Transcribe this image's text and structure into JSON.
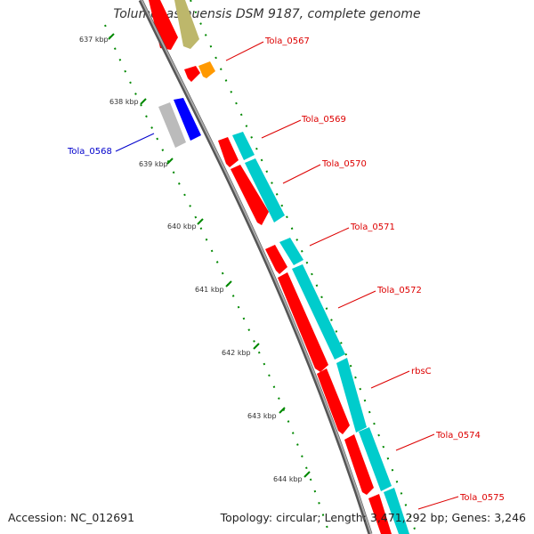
{
  "title": "Tolumonas auensis DSM 9187, complete genome",
  "footer": {
    "accession": "Accession: NC_012691",
    "stats": "Topology: circular; Length: 3,471,292 bp; Genes: 3,246"
  },
  "ticks": [
    {
      "label": "637 kbp"
    },
    {
      "label": "638 kbp"
    },
    {
      "label": "639 kbp"
    },
    {
      "label": "640 kbp"
    },
    {
      "label": "641 kbp"
    },
    {
      "label": "642 kbp"
    },
    {
      "label": "643 kbp"
    },
    {
      "label": "644 kbp"
    }
  ],
  "gene_labels": [
    {
      "text": "Tola_0567",
      "color": "#dd0000"
    },
    {
      "text": "Tola_0569",
      "color": "#dd0000"
    },
    {
      "text": "Tola_0570",
      "color": "#dd0000"
    },
    {
      "text": "Tola_0571",
      "color": "#dd0000"
    },
    {
      "text": "Tola_0572",
      "color": "#dd0000"
    },
    {
      "text": "rbsC",
      "color": "#dd0000"
    },
    {
      "text": "Tola_0574",
      "color": "#dd0000"
    },
    {
      "text": "Tola_0575",
      "color": "#dd0000"
    },
    {
      "text": "Tola_0568",
      "color": "#0000cc"
    }
  ],
  "colors": {
    "cds": "#ff0000",
    "gene": "#00cccc",
    "gene_olive": "#bdb76b",
    "orange": "#ff9900",
    "blue_feature": "#0000ff",
    "grey_feature": "#bbbbbb",
    "backbone": "#888888",
    "tick": "#008800"
  }
}
